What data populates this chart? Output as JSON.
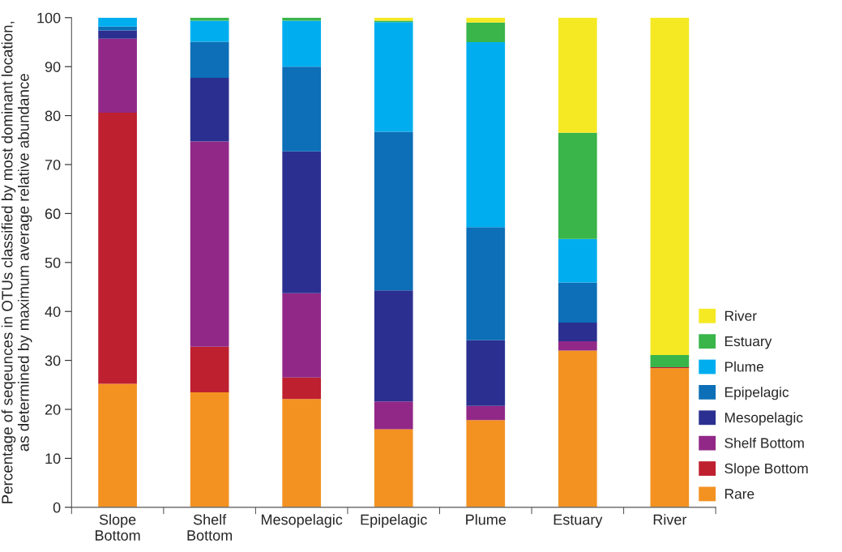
{
  "chart_data": {
    "type": "bar",
    "stacked": true,
    "ylabel": "Percentage of seqeunces in OTUs classified by most dominant location, as determined by maximum average relative abundance",
    "categories": [
      "Slope Bottom",
      "Shelf Bottom",
      "Mesopelagic",
      "Epipelagic",
      "Plume",
      "Estuary",
      "River"
    ],
    "ylim": [
      0,
      100
    ],
    "yticks": [
      0,
      10,
      20,
      30,
      40,
      50,
      60,
      70,
      80,
      90,
      100
    ],
    "grid": false,
    "legend": "bottom right",
    "series": [
      {
        "name": "Rare",
        "color": "#f39221",
        "values": [
          25.2,
          23.5,
          22.1,
          15.9,
          17.8,
          32.0,
          28.4
        ]
      },
      {
        "name": "Slope Bottom",
        "color": "#be2030",
        "values": [
          55.4,
          9.3,
          4.4,
          0.1,
          0,
          0,
          0.2
        ]
      },
      {
        "name": "Shelf Bottom",
        "color": "#912887",
        "values": [
          15.1,
          41.9,
          17.2,
          5.6,
          2.9,
          1.9,
          0
        ]
      },
      {
        "name": "Mesopelagic",
        "color": "#2b3090",
        "values": [
          1.7,
          13.0,
          29.0,
          22.7,
          13.4,
          3.8,
          0
        ]
      },
      {
        "name": "Epipelagic",
        "color": "#0c6fb7",
        "values": [
          0.8,
          7.4,
          17.3,
          32.4,
          23.1,
          8.2,
          0
        ]
      },
      {
        "name": "Plume",
        "color": "#00aeef",
        "values": [
          1.8,
          4.3,
          9.4,
          22.4,
          37.8,
          8.9,
          0
        ]
      },
      {
        "name": "Estuary",
        "color": "#39b54a",
        "values": [
          0,
          0.6,
          0.6,
          0.3,
          4.0,
          21.7,
          2.5
        ]
      },
      {
        "name": "River",
        "color": "#f5e924",
        "values": [
          0,
          0,
          0,
          0.6,
          1.0,
          23.5,
          68.9
        ]
      }
    ]
  }
}
